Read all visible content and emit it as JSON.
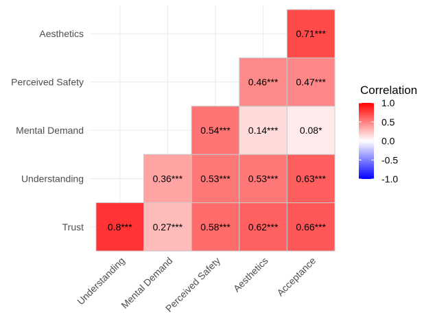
{
  "chart_data": {
    "type": "heatmap",
    "variant": "lower-triangle correlation matrix",
    "x_categories": [
      "Understanding",
      "Mental Demand",
      "Perceived Safety",
      "Aesthetics",
      "Acceptance"
    ],
    "y_categories": [
      "Trust",
      "Understanding",
      "Mental Demand",
      "Perceived Safety",
      "Aesthetics"
    ],
    "cells": [
      {
        "row": "Trust",
        "col": "Understanding",
        "value": 0.8,
        "label": "0.8***"
      },
      {
        "row": "Trust",
        "col": "Mental Demand",
        "value": 0.27,
        "label": "0.27***"
      },
      {
        "row": "Trust",
        "col": "Perceived Safety",
        "value": 0.58,
        "label": "0.58***"
      },
      {
        "row": "Trust",
        "col": "Aesthetics",
        "value": 0.62,
        "label": "0.62***"
      },
      {
        "row": "Trust",
        "col": "Acceptance",
        "value": 0.66,
        "label": "0.66***"
      },
      {
        "row": "Understanding",
        "col": "Mental Demand",
        "value": 0.36,
        "label": "0.36***"
      },
      {
        "row": "Understanding",
        "col": "Perceived Safety",
        "value": 0.53,
        "label": "0.53***"
      },
      {
        "row": "Understanding",
        "col": "Aesthetics",
        "value": 0.53,
        "label": "0.53***"
      },
      {
        "row": "Understanding",
        "col": "Acceptance",
        "value": 0.63,
        "label": "0.63***"
      },
      {
        "row": "Mental Demand",
        "col": "Perceived Safety",
        "value": 0.54,
        "label": "0.54***"
      },
      {
        "row": "Mental Demand",
        "col": "Aesthetics",
        "value": 0.14,
        "label": "0.14***"
      },
      {
        "row": "Mental Demand",
        "col": "Acceptance",
        "value": 0.08,
        "label": "0.08*"
      },
      {
        "row": "Perceived Safety",
        "col": "Aesthetics",
        "value": 0.46,
        "label": "0.46***"
      },
      {
        "row": "Perceived Safety",
        "col": "Acceptance",
        "value": 0.47,
        "label": "0.47***"
      },
      {
        "row": "Aesthetics",
        "col": "Acceptance",
        "value": 0.71,
        "label": "0.71***"
      }
    ],
    "legend": {
      "title": "Correlation",
      "ticks": [
        "1.0",
        "0.5",
        "0.0",
        "-0.5",
        "-1.0"
      ],
      "tick_values": [
        1.0,
        0.5,
        0.0,
        -0.5,
        -1.0
      ],
      "range": [
        -1,
        1
      ],
      "placement": "right"
    },
    "colors": {
      "high": "#ff0000",
      "mid": "#ffffff",
      "low": "#0000ff",
      "grid": "#ebebeb",
      "tile_border": "#c8c8c8"
    },
    "grid": true
  }
}
